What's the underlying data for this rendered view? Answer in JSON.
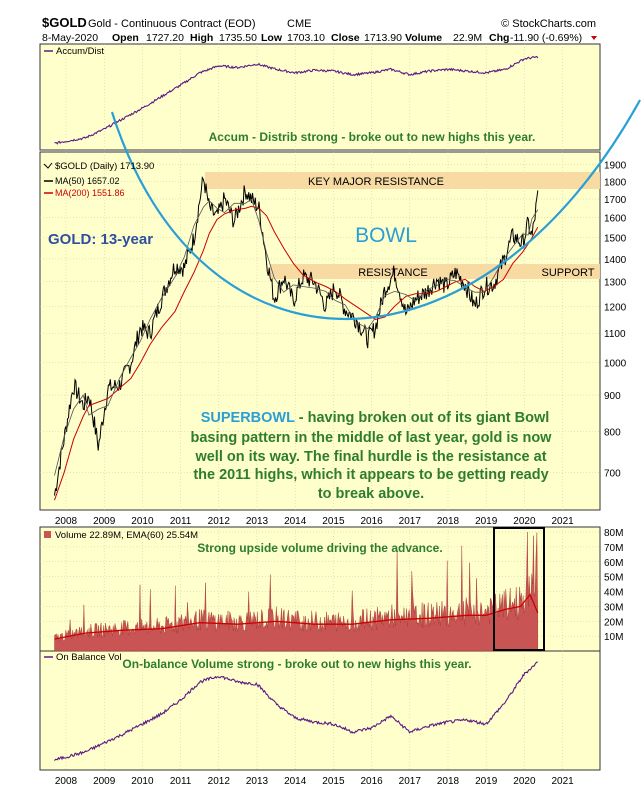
{
  "header": {
    "symbol": "$GOLD",
    "description": "Gold - Continuous Contract (EOD)",
    "exchange": "CME",
    "date": "8-May-2020",
    "open_label": "Open",
    "open": "1727.20",
    "high_label": "High",
    "high": "1735.50",
    "low_label": "Low",
    "low": "1703.10",
    "close_label": "Close",
    "close": "1713.90",
    "volume_label": "Volume",
    "volume": "22.9M",
    "chg_label": "Chg",
    "chg": "-11.90 (-0.69%)",
    "source": "© StockCharts.com"
  },
  "colors": {
    "panel_bg": "#FFFFCC",
    "price_line": "#000000",
    "ma200": "#CC0000",
    "indicator_line": "#5B1A83",
    "bowl": "#2A9FD6",
    "resistance_band": "#F7D9A0",
    "annotation_green": "#2E7D2E",
    "annotation_blue": "#2A9FD6",
    "gold_label_blue": "#2F4FA0",
    "volume_fill": "#C85454",
    "ema_line": "#CC0000"
  },
  "chart_data": [
    {
      "type": "line",
      "panel": "accum_dist",
      "title": "Accum/Dist",
      "x": [
        2007.7,
        2008.5,
        2009.0,
        2009.5,
        2010.0,
        2010.5,
        2011.0,
        2011.5,
        2012.0,
        2012.5,
        2013.0,
        2013.5,
        2014.0,
        2014.5,
        2015.0,
        2015.5,
        2016.0,
        2016.5,
        2017.0,
        2017.5,
        2018.0,
        2018.5,
        2019.0,
        2019.5,
        2020.0,
        2020.35
      ],
      "values": [
        0.02,
        0.08,
        0.18,
        0.3,
        0.42,
        0.55,
        0.68,
        0.82,
        0.9,
        0.88,
        0.92,
        0.86,
        0.82,
        0.85,
        0.84,
        0.8,
        0.82,
        0.86,
        0.8,
        0.84,
        0.86,
        0.84,
        0.82,
        0.86,
        0.98,
        1.0
      ],
      "annotations": [
        "Accum - Distrib strong - broke out to new highs this year."
      ]
    },
    {
      "type": "line",
      "panel": "price",
      "legend": {
        "price": "$GOLD (Daily) 1713.90",
        "ma50": "MA(50) 1657.02",
        "ma200": "MA(200) 1551.86"
      },
      "y_scale": "log",
      "ylim": [
        600,
        2000
      ],
      "y_ticks": [
        700,
        800,
        900,
        1000,
        1100,
        1200,
        1300,
        1400,
        1500,
        1600,
        1700,
        1800,
        1900
      ],
      "x_ticks": [
        "2008",
        "2009",
        "2010",
        "2011",
        "2012",
        "2013",
        "2014",
        "2015",
        "2016",
        "2017",
        "2018",
        "2019",
        "2020",
        "2021"
      ],
      "x": [
        2007.7,
        2007.95,
        2008.2,
        2008.45,
        2008.6,
        2008.85,
        2009.1,
        2009.4,
        2009.7,
        2009.95,
        2010.2,
        2010.5,
        2010.85,
        2011.1,
        2011.35,
        2011.6,
        2011.75,
        2011.95,
        2012.15,
        2012.4,
        2012.7,
        2012.85,
        2013.05,
        2013.25,
        2013.45,
        2013.7,
        2013.95,
        2014.2,
        2014.5,
        2014.8,
        2015.05,
        2015.3,
        2015.6,
        2015.9,
        2016.1,
        2016.35,
        2016.6,
        2016.9,
        2017.15,
        2017.45,
        2017.7,
        2017.95,
        2018.2,
        2018.45,
        2018.7,
        2018.95,
        2019.2,
        2019.45,
        2019.7,
        2019.95,
        2020.1,
        2020.2,
        2020.35
      ],
      "values": [
        650,
        780,
        930,
        870,
        900,
        760,
        920,
        930,
        1000,
        1120,
        1100,
        1230,
        1370,
        1360,
        1500,
        1820,
        1650,
        1600,
        1700,
        1580,
        1750,
        1700,
        1650,
        1400,
        1230,
        1320,
        1220,
        1320,
        1300,
        1200,
        1280,
        1190,
        1150,
        1080,
        1120,
        1270,
        1340,
        1170,
        1230,
        1260,
        1310,
        1280,
        1340,
        1290,
        1200,
        1280,
        1290,
        1390,
        1510,
        1470,
        1570,
        1500,
        1713.9
      ],
      "ma200": [
        640,
        700,
        780,
        840,
        870,
        880,
        890,
        920,
        950,
        1000,
        1060,
        1120,
        1180,
        1260,
        1340,
        1440,
        1520,
        1590,
        1620,
        1640,
        1650,
        1660,
        1650,
        1610,
        1530,
        1450,
        1380,
        1330,
        1300,
        1280,
        1260,
        1230,
        1200,
        1170,
        1150,
        1160,
        1200,
        1240,
        1250,
        1250,
        1260,
        1280,
        1300,
        1310,
        1280,
        1260,
        1280,
        1310,
        1380,
        1430,
        1470,
        1500,
        1551.86
      ],
      "annotations": {
        "band_top": "KEY MAJOR RESISTANCE",
        "band_mid": "RESISTANCE",
        "support": "SUPPORT",
        "bowl": "BOWL",
        "left_label": "GOLD: 13-year",
        "superbowl_lead": "SUPERBOWL",
        "superbowl_text_1": " - having broken out of its giant Bowl",
        "superbowl_text_2": "basing pattern in the middle of last year, gold is now",
        "superbowl_text_3": "well on its way. The final hurdle is the resistance at",
        "superbowl_text_4": "the 2011 highs, which it appears to be getting ready",
        "superbowl_text_5": "to break above."
      }
    },
    {
      "type": "area",
      "panel": "volume",
      "legend": "Volume 22.89M, EMA(60) 25.54M",
      "y_ticks": [
        "10M",
        "20M",
        "30M",
        "40M",
        "50M",
        "60M",
        "70M",
        "80M"
      ],
      "ylim": [
        0,
        80
      ],
      "x": [
        2007.7,
        2008.5,
        2009.5,
        2010.5,
        2011.5,
        2012.5,
        2013.5,
        2014.5,
        2015.5,
        2016.5,
        2017.5,
        2018.5,
        2019.0,
        2019.5,
        2019.9,
        2020.15,
        2020.35
      ],
      "ema": [
        8,
        12,
        14,
        15,
        19,
        18,
        20,
        18,
        18,
        21,
        22,
        24,
        24,
        28,
        30,
        38,
        25.54
      ],
      "annotations": [
        "Strong upside volume driving the advance."
      ]
    },
    {
      "type": "line",
      "panel": "on_balance_volume",
      "title": "On Balance Vol",
      "x": [
        2007.7,
        2008.5,
        2009.5,
        2010.5,
        2011.0,
        2011.5,
        2012.0,
        2012.5,
        2013.0,
        2013.5,
        2014.0,
        2014.5,
        2015.0,
        2015.5,
        2016.0,
        2016.5,
        2017.0,
        2017.5,
        2018.0,
        2018.5,
        2019.0,
        2019.5,
        2020.0,
        2020.35
      ],
      "values": [
        0.02,
        0.1,
        0.28,
        0.48,
        0.62,
        0.8,
        0.86,
        0.8,
        0.78,
        0.58,
        0.44,
        0.4,
        0.38,
        0.3,
        0.34,
        0.46,
        0.3,
        0.36,
        0.4,
        0.42,
        0.38,
        0.6,
        0.88,
        1.0
      ],
      "annotations": [
        "On-balance Volume strong - broke out to new highs this year."
      ],
      "x_ticks": [
        "2008",
        "2009",
        "2010",
        "2011",
        "2012",
        "2013",
        "2014",
        "2015",
        "2016",
        "2017",
        "2018",
        "2019",
        "2020",
        "2021"
      ]
    }
  ]
}
